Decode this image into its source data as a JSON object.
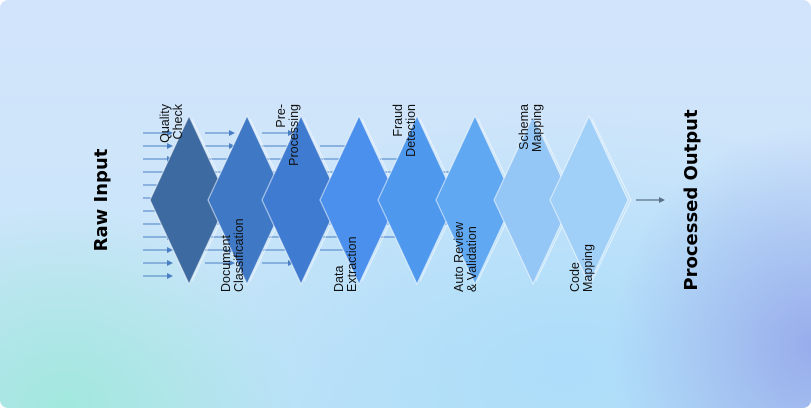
{
  "diagram": {
    "input_label": "Raw Input",
    "output_label": "Processed Output",
    "stages": [
      {
        "name": "Quality Check",
        "label": [
          "Quality",
          "Check"
        ],
        "position": "top",
        "color": "#3d6aa0",
        "text_color": "#111111"
      },
      {
        "name": "Document Classification",
        "label": [
          "Document",
          "Classification"
        ],
        "position": "bottom",
        "color": "#3f78c5",
        "text_color": "#111111"
      },
      {
        "name": "Pre-Processing",
        "label": [
          "Pre-",
          "Processing"
        ],
        "position": "top",
        "color": "#3f7bd0",
        "text_color": "#111111"
      },
      {
        "name": "Data Extraction",
        "label": [
          "Data",
          "Extraction"
        ],
        "position": "bottom",
        "color": "#4a90ec",
        "text_color": "#111111"
      },
      {
        "name": "Fraud Detection",
        "label": [
          "Fraud",
          "Detection"
        ],
        "position": "top",
        "color": "#4e98ee",
        "text_color": "#111111"
      },
      {
        "name": "Auto Review & Validation",
        "label": [
          "Auto Review",
          "& Validation"
        ],
        "position": "bottom",
        "color": "#60a8f2",
        "text_color": "#111111"
      },
      {
        "name": "Schema Mapping",
        "label": [
          "Schema",
          "Mapping"
        ],
        "position": "top",
        "color": "#94c6f6",
        "text_color": "#111111"
      },
      {
        "name": "Code Mapping",
        "label": [
          "Code",
          "Mapping"
        ],
        "position": "bottom",
        "color": "#a0cff7",
        "text_color": "#111111"
      }
    ],
    "arrow_color": "#4a7fc4",
    "output_arrow_color": "#5a6f88"
  }
}
